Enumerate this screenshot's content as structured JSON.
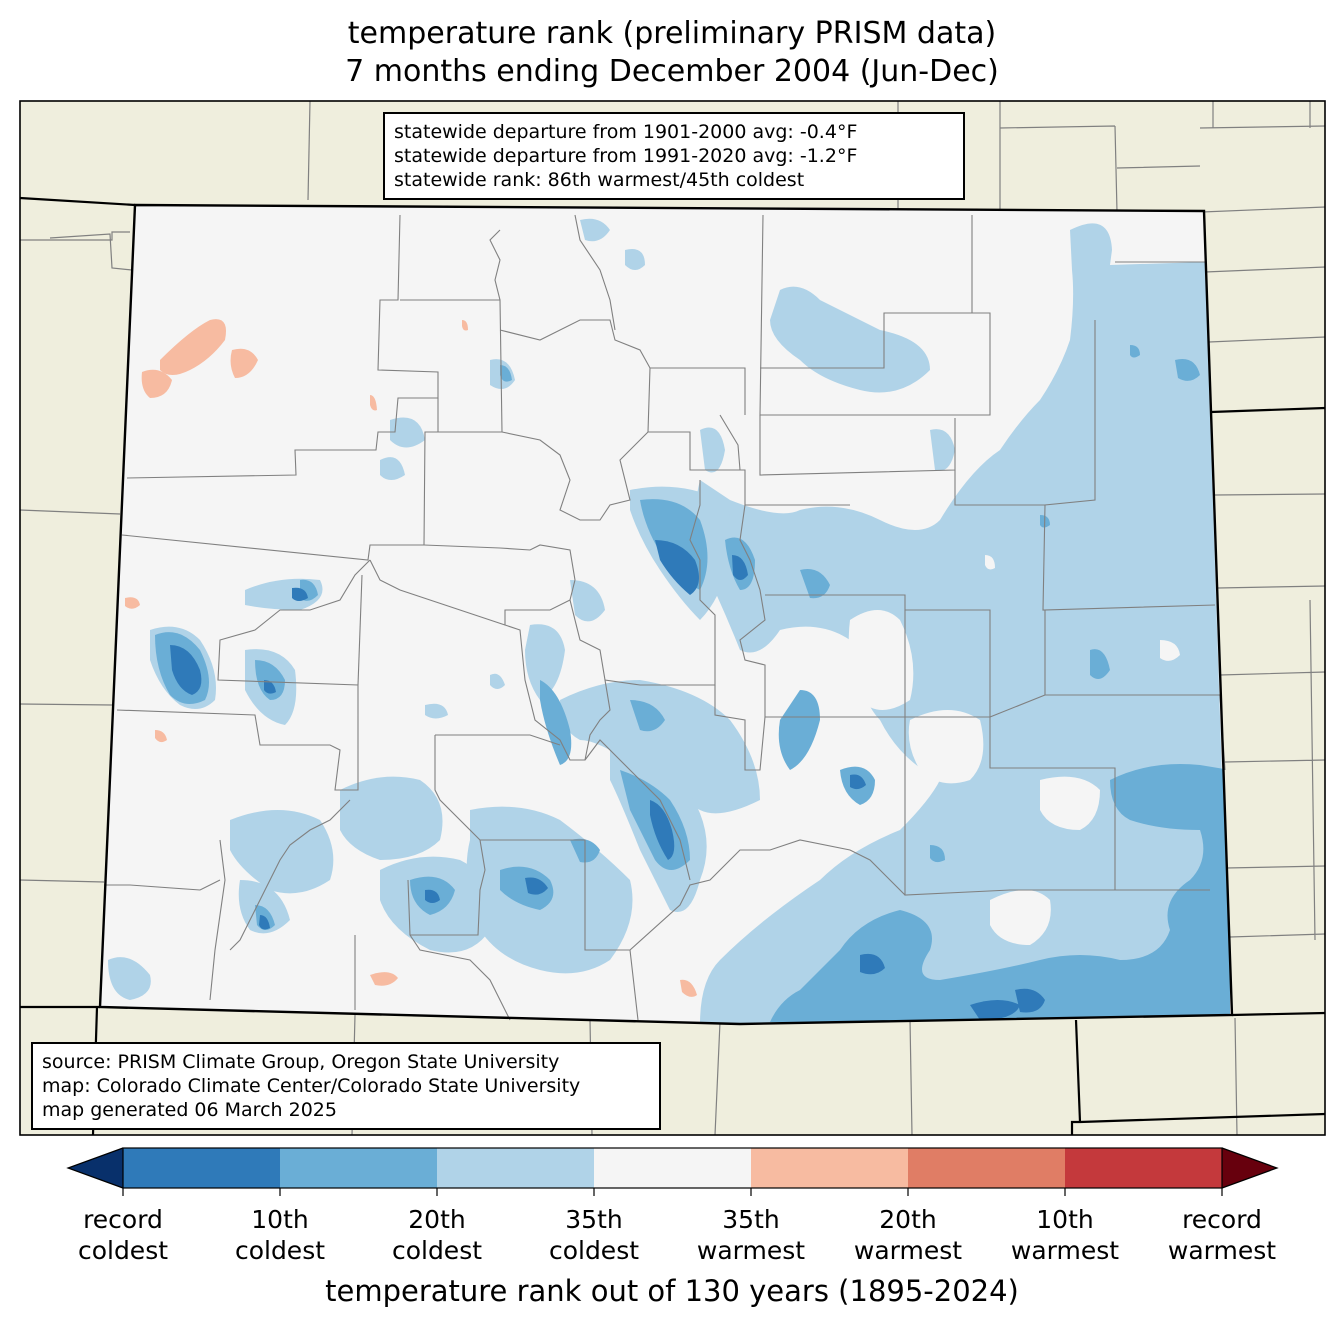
{
  "title": {
    "line1": "temperature rank (preliminary PRISM data)",
    "line2": "7 months ending December 2004 (Jun-Dec)"
  },
  "stats": {
    "line1": "statewide departure from 1901-2000 avg: -0.4°F",
    "line2": "statewide departure from 1991-2020 avg: -1.2°F",
    "line3": "statewide rank: 86th warmest/45th coldest"
  },
  "source": {
    "line1": "source: PRISM Climate Group, Oregon State University",
    "line2": "map: Colorado Climate Center/Colorado State University",
    "line3": "map generated 06 March 2025"
  },
  "legend": {
    "title": "temperature rank out of 130 years (1895-2024)",
    "labels": [
      {
        "top": "record",
        "bottom": "coldest"
      },
      {
        "top": "10th",
        "bottom": "coldest"
      },
      {
        "top": "20th",
        "bottom": "coldest"
      },
      {
        "top": "35th",
        "bottom": "coldest"
      },
      {
        "top": "35th",
        "bottom": "warmest"
      },
      {
        "top": "20th",
        "bottom": "warmest"
      },
      {
        "top": "10th",
        "bottom": "warmest"
      },
      {
        "top": "record",
        "bottom": "warmest"
      }
    ],
    "colors": [
      "#08306b",
      "#2f7ab9",
      "#6aaed6",
      "#b0d3e8",
      "#f5f5f5",
      "#f7bba1",
      "#e07d65",
      "#c4393c",
      "#67000d"
    ]
  },
  "colors": {
    "land_outside": "#efeedd",
    "state_fill": "#f5f5f5",
    "border": "#000000",
    "county_lines": "#808080"
  }
}
